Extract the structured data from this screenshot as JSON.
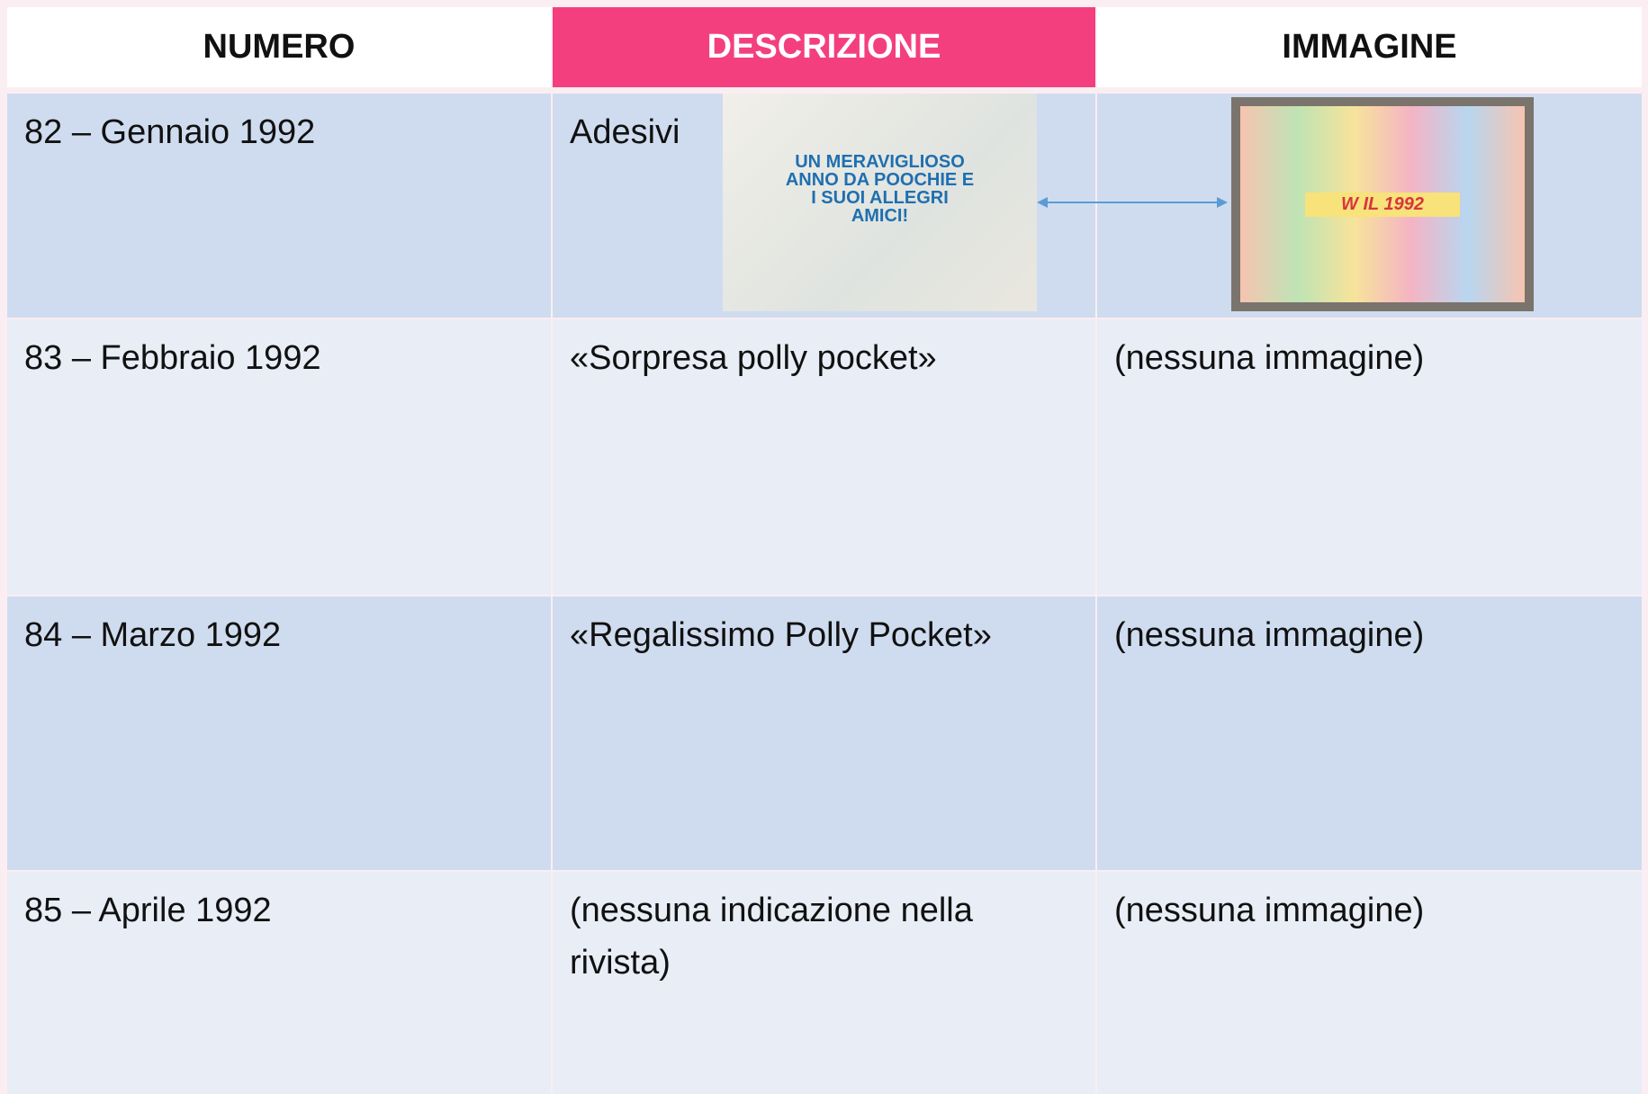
{
  "header": {
    "columns": [
      "NUMERO",
      "DESCRIZIONE",
      "IMMAGINE"
    ]
  },
  "table": {
    "rows": [
      {
        "numero": "82 – Gennaio 1992",
        "descrizione": "Adesivi"
      },
      {
        "numero": "83 – Febbraio 1992",
        "descrizione": "«Sorpresa polly pocket»",
        "immagine": "(nessuna immagine)"
      },
      {
        "numero": "84 – Marzo 1992",
        "descrizione": "«Regalissimo Polly Pocket»",
        "immagine": "(nessuna immagine)"
      },
      {
        "numero": "85 – Aprile 1992",
        "descrizione": "(nessuna indicazione nella rivista)",
        "immagine": "(nessuna immagine)"
      }
    ]
  },
  "images": {
    "envelope_text": "UN MERAVIGLIOSO ANNO DA POOCHIE E I SUOI ALLEGRI AMICI!",
    "sheet_text": "W IL 1992"
  }
}
